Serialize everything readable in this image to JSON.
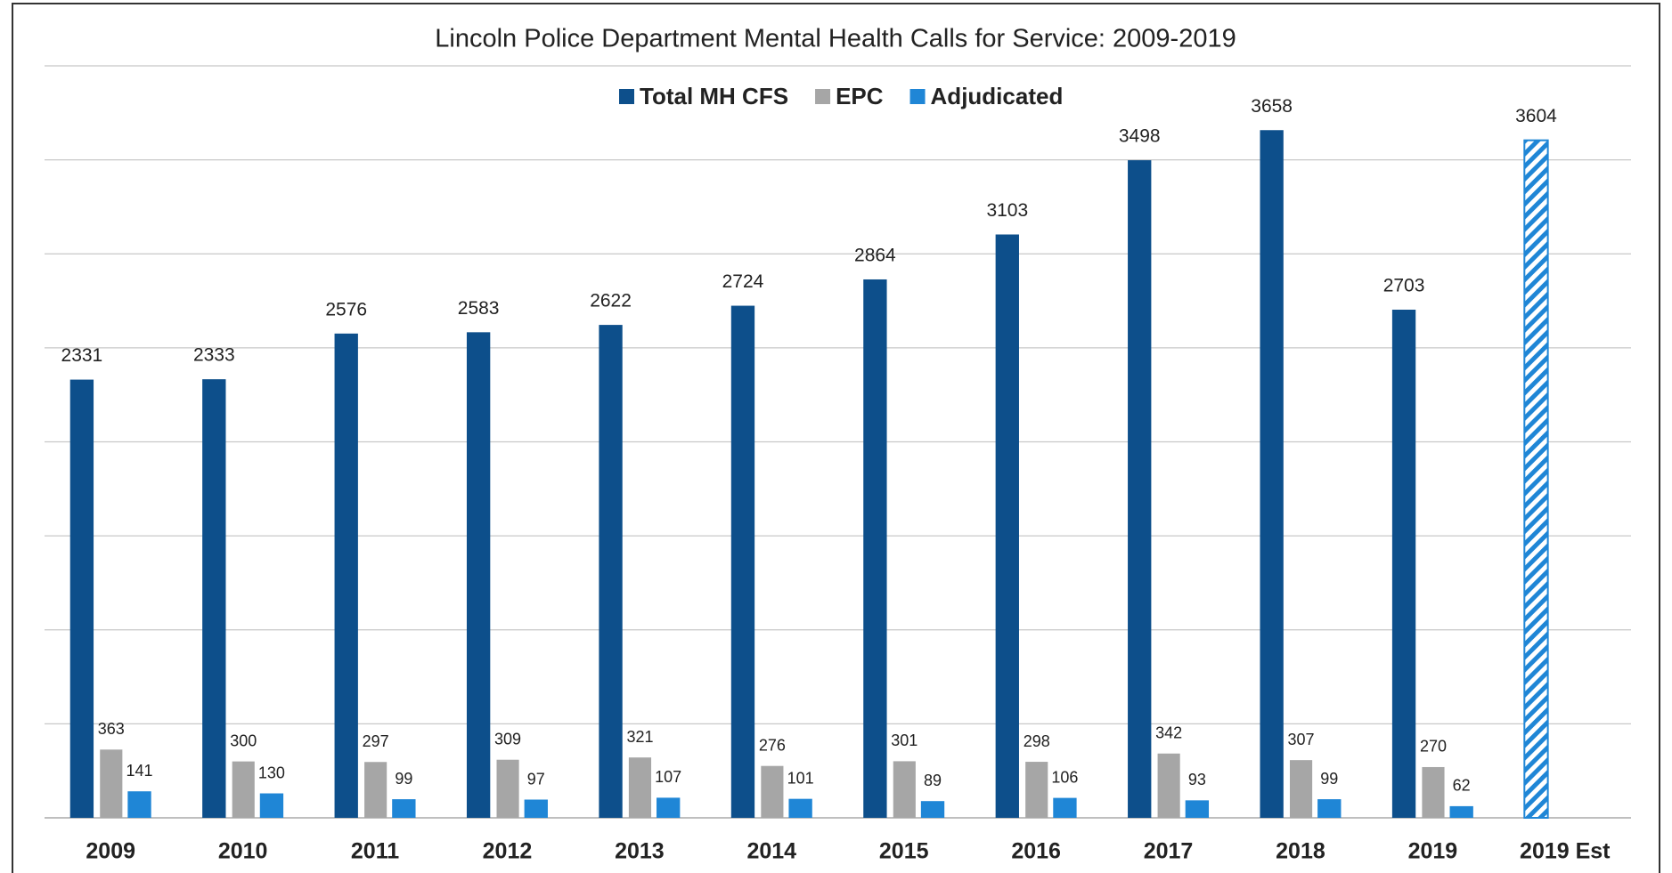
{
  "chart_data": {
    "type": "bar",
    "title": "Lincoln Police Department Mental Health Calls for Service: 2009-2019",
    "categories": [
      "2009",
      "2010",
      "2011",
      "2012",
      "2013",
      "2014",
      "2015",
      "2016",
      "2017",
      "2018",
      "2019",
      "2019 Est"
    ],
    "series": [
      {
        "name": "Total MH CFS",
        "color": "#0d4f8b",
        "values": [
          2331,
          2333,
          2576,
          2583,
          2622,
          2724,
          2864,
          3103,
          3498,
          3658,
          2703,
          3604
        ],
        "hatched": [
          false,
          false,
          false,
          false,
          false,
          false,
          false,
          false,
          false,
          false,
          false,
          true
        ],
        "hatch_color": "#1f86d6"
      },
      {
        "name": "EPC",
        "color": "#a6a6a6",
        "values": [
          363,
          300,
          297,
          309,
          321,
          276,
          301,
          298,
          342,
          307,
          270,
          null
        ]
      },
      {
        "name": "Adjudicated",
        "color": "#1f86d6",
        "values": [
          141,
          130,
          99,
          97,
          107,
          101,
          89,
          106,
          93,
          99,
          62,
          null
        ]
      }
    ],
    "ylim": [
      0,
      4000
    ],
    "yticks": [
      0,
      500,
      1000,
      1500,
      2000,
      2500,
      3000,
      3500,
      4000
    ],
    "grid": true,
    "legend": "top"
  }
}
